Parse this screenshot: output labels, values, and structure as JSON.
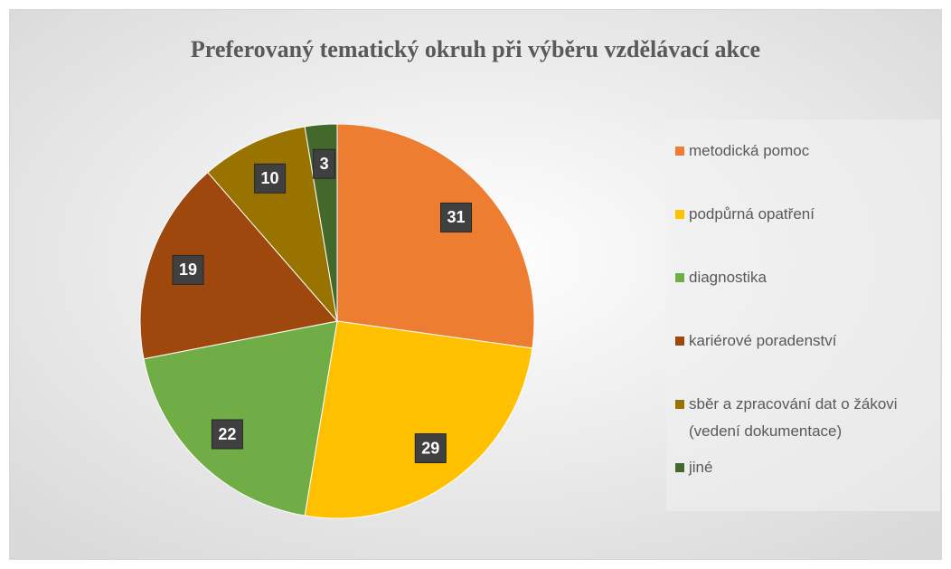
{
  "chart_data": {
    "type": "pie",
    "title": "Preferovaný tematický okruh při výběru vzdělávací akce",
    "categories": [
      "metodická pomoc",
      "podpůrná opatření",
      "diagnostika",
      "kariérové poradenství",
      "sběr a zpracování dat o žákovi (vedení dokumentace)",
      "jiné"
    ],
    "values": [
      31,
      29,
      22,
      19,
      10,
      3
    ],
    "colors": [
      "#ed7d31",
      "#ffc000",
      "#70ad47",
      "#9e480e",
      "#997300",
      "#43682b"
    ],
    "legend": "right"
  }
}
